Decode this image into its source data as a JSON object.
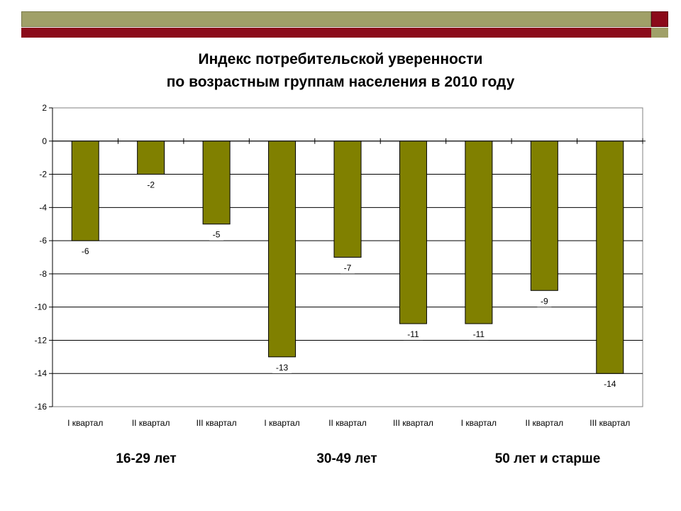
{
  "chart_data": {
    "type": "bar",
    "title": [
      "Индекс потребительской уверенности",
      "по возрастным группам населения в 2010 году"
    ],
    "categories": [
      "I квартал",
      "II квартал",
      "III квартал",
      "I квартал",
      "II квартал",
      "III квартал",
      "I квартал",
      "II квартал",
      "III квартал"
    ],
    "values": [
      -6,
      -2,
      -5,
      -13,
      -7,
      -11,
      -11,
      -9,
      -14
    ],
    "data_labels": [
      "-6",
      "-2",
      "-5",
      "-13",
      "-7",
      "-11",
      "-11",
      "-9",
      "-14"
    ],
    "groups": [
      "16-29 лет",
      "30-49 лет",
      "50 лет и старше"
    ],
    "ylim": [
      -16,
      2
    ],
    "yticks": [
      "2",
      "0",
      "-2",
      "-4",
      "-6",
      "-8",
      "-10",
      "-12",
      "-14",
      "-16"
    ],
    "grid": true,
    "bar_color": "#808000"
  },
  "colors": {
    "banner_olive": "#a0a068",
    "banner_red": "#8b0a1a"
  }
}
